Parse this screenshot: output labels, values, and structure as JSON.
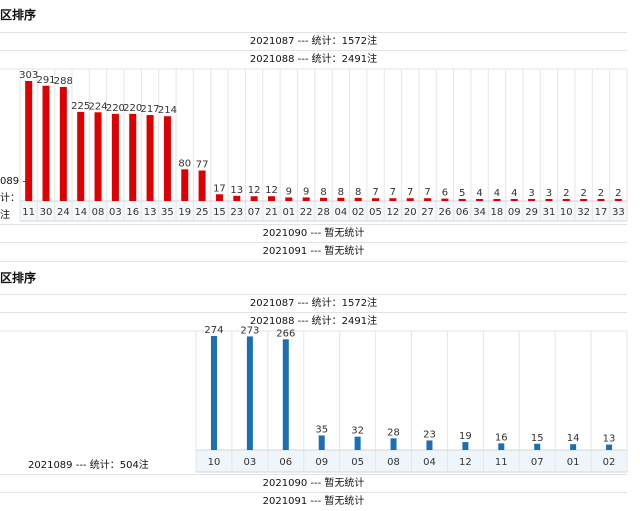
{
  "sections": [
    {
      "title": "区排序",
      "rows_before": [
        "2021087 --- 统计：1572注",
        "2021088 --- 统计：2491注"
      ],
      "current_label_lines": [
        "089 –",
        "计：",
        "注"
      ],
      "rows_after": [
        "2021090 --- 暂无统计",
        "2021091 --- 暂无统计"
      ]
    },
    {
      "title": "区排序",
      "rows_before": [
        "2021087 --- 统计：1572注",
        "2021088 --- 统计：2491注"
      ],
      "current_label": "2021089 --- 统计：504注",
      "rows_after": [
        "2021090 --- 暂无统计",
        "2021091 --- 暂无统计"
      ]
    }
  ],
  "chart_data": [
    {
      "type": "bar",
      "color": "#dd0000",
      "categories": [
        "11",
        "30",
        "24",
        "14",
        "08",
        "03",
        "16",
        "13",
        "35",
        "19",
        "25",
        "15",
        "23",
        "07",
        "21",
        "01",
        "22",
        "28",
        "04",
        "02",
        "05",
        "12",
        "20",
        "27",
        "26",
        "06",
        "34",
        "18",
        "09",
        "29",
        "31",
        "10",
        "32",
        "17",
        "33"
      ],
      "values": [
        303,
        291,
        288,
        225,
        224,
        220,
        220,
        217,
        214,
        80,
        77,
        17,
        13,
        12,
        12,
        9,
        9,
        8,
        8,
        8,
        7,
        7,
        7,
        7,
        6,
        5,
        4,
        4,
        4,
        3,
        3,
        2,
        2,
        2,
        2
      ]
    },
    {
      "type": "bar",
      "color": "#1a6fb5",
      "categories": [
        "10",
        "03",
        "06",
        "09",
        "05",
        "08",
        "04",
        "12",
        "11",
        "07",
        "01",
        "02"
      ],
      "values": [
        274,
        273,
        266,
        35,
        32,
        28,
        23,
        19,
        16,
        15,
        14,
        13
      ]
    }
  ]
}
